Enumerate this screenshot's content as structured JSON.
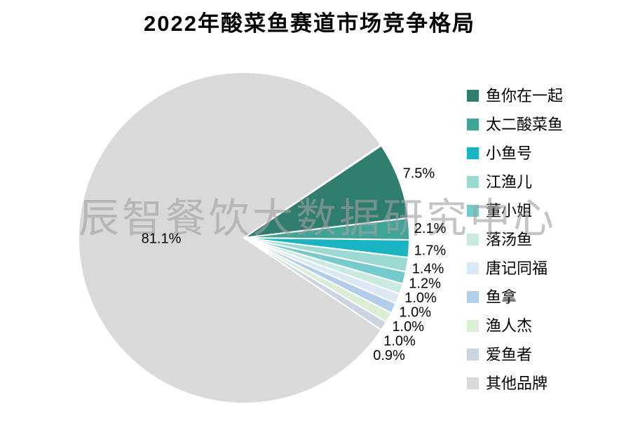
{
  "title": "2022年酸菜鱼赛道市场竞争格局",
  "watermark": "辰智餐饮大数据研究中心",
  "chart_data": {
    "type": "pie",
    "title": "2022年酸菜鱼赛道市场竞争格局",
    "categories": [
      "鱼你在一起",
      "太二酸菜鱼",
      "小鱼号",
      "江渔儿",
      "董小姐",
      "落汤鱼",
      "唐记同福",
      "鱼拿",
      "渔人杰",
      "爱鱼者",
      "其他品牌"
    ],
    "values": [
      7.5,
      2.1,
      1.7,
      1.4,
      1.2,
      1.0,
      1.0,
      1.0,
      1.0,
      0.9,
      81.1
    ],
    "labels": [
      "7.5%",
      "2.1%",
      "1.7%",
      "1.4%",
      "1.2%",
      "1.0%",
      "1.0%",
      "1.0%",
      "1.0%",
      "0.9%",
      "81.1%"
    ],
    "colors": [
      "#2F7D6F",
      "#40A596",
      "#18B4C4",
      "#9CD9D3",
      "#74CBCC",
      "#C9EAE1",
      "#DBE7F4",
      "#B1CDE9",
      "#DCEDD5",
      "#CBD5E2",
      "#D9D9D9"
    ],
    "start_angle_deg": 56.16,
    "slice_border_color": "#FFFFFF",
    "label_color": "#000000",
    "legend_position": "right",
    "watermark": "辰智餐饮大数据研究中心"
  }
}
